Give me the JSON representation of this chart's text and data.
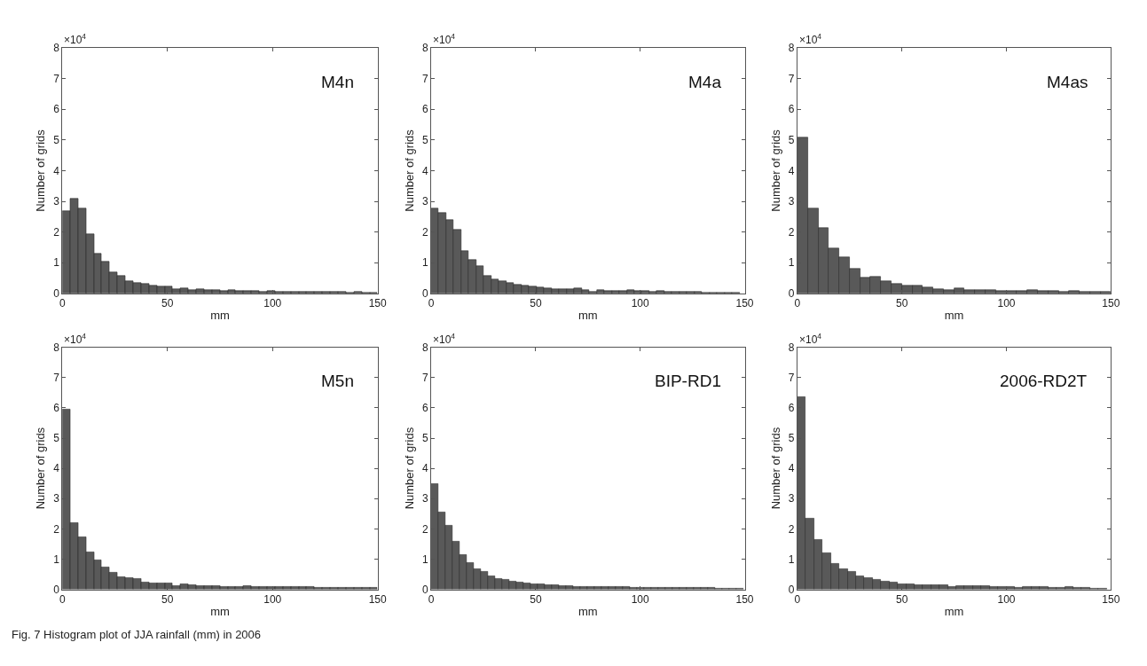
{
  "chart_data": [
    {
      "type": "histogram",
      "title": "M4n",
      "xlabel": "mm",
      "ylabel": "Number of grids",
      "color": "#595959",
      "xlim": [
        0,
        150
      ],
      "xticks": [
        0,
        50,
        100,
        150
      ],
      "ylim": [
        0,
        8
      ],
      "yticks": [
        0,
        1,
        2,
        3,
        4,
        5,
        6,
        7,
        8
      ],
      "grid": false,
      "legend": false,
      "bins": [
        0,
        3.75,
        7.5,
        11.25,
        15,
        18.75,
        22.5,
        26.25,
        30,
        33.75,
        37.5,
        41.25,
        45,
        48.75,
        52.5,
        56.25,
        60,
        63.75,
        67.5,
        71.25,
        75,
        78.75,
        82.5,
        86.25,
        90,
        93.75,
        97.5,
        101.25,
        105,
        108.75,
        112.5,
        116.25,
        120,
        123.75,
        127.5,
        131.25,
        135,
        138.75,
        142.5,
        146.25,
        150
      ],
      "values": [
        2.69,
        3.1,
        2.77,
        1.94,
        1.3,
        1.02,
        0.69,
        0.58,
        0.4,
        0.33,
        0.3,
        0.26,
        0.21,
        0.22,
        0.14,
        0.17,
        0.12,
        0.14,
        0.12,
        0.1,
        0.08,
        0.12,
        0.08,
        0.08,
        0.08,
        0.06,
        0.07,
        0.06,
        0.05,
        0.05,
        0.04,
        0.05,
        0.05,
        0.05,
        0.04,
        0.04,
        0.03,
        0.04,
        0.03,
        0.02
      ],
      "annotations": [
        "×10$^{4}$",
        "Fig. 7 Histogram plot of JJA rainfall (mm) in 2006"
      ]
    },
    {
      "type": "histogram",
      "title": "M4a",
      "xlabel": "mm",
      "ylabel": "Number of grids",
      "color": "#595959",
      "xlim": [
        0,
        150
      ],
      "xticks": [
        0,
        50,
        100,
        150
      ],
      "ylim": [
        0,
        8
      ],
      "yticks": [
        0,
        1,
        2,
        3,
        4,
        5,
        6,
        7,
        8
      ],
      "grid": false,
      "legend": false,
      "bins": [
        0,
        3.6,
        7.2,
        10.8,
        14.4,
        18,
        21.6,
        25.2,
        28.8,
        32.4,
        36,
        39.6,
        43.2,
        46.8,
        50.4,
        54,
        57.6,
        61.2,
        64.8,
        68.4,
        72,
        75.6,
        79.2,
        82.8,
        86.4,
        90,
        93.6,
        97.2,
        100.8,
        104.4,
        108,
        111.6,
        115.2,
        118.8,
        122.4,
        126,
        129.6,
        133.2,
        136.8,
        140.4,
        144,
        147.6
      ],
      "values": [
        2.76,
        2.62,
        2.39,
        2.07,
        1.39,
        1.08,
        0.88,
        0.57,
        0.45,
        0.39,
        0.34,
        0.28,
        0.25,
        0.23,
        0.19,
        0.16,
        0.15,
        0.14,
        0.15,
        0.17,
        0.11,
        0.06,
        0.11,
        0.08,
        0.08,
        0.07,
        0.1,
        0.07,
        0.07,
        0.05,
        0.08,
        0.05,
        0.05,
        0.04,
        0.04,
        0.04,
        0.03,
        0.03,
        0.03,
        0.03,
        0.02
      ],
      "annotations": [
        "×10$^{4}$"
      ]
    },
    {
      "type": "histogram",
      "title": "M4as",
      "xlabel": "mm",
      "ylabel": "Number of grids",
      "color": "#595959",
      "xlim": [
        0,
        150
      ],
      "xticks": [
        0,
        50,
        100,
        150
      ],
      "ylim": [
        0,
        8
      ],
      "yticks": [
        0,
        1,
        2,
        3,
        4,
        5,
        6,
        7,
        8
      ],
      "grid": false,
      "legend": false,
      "bins": [
        0,
        5,
        10,
        15,
        20,
        25,
        30,
        35,
        40,
        45,
        50,
        55,
        60,
        65,
        70,
        75,
        80,
        85,
        90,
        95,
        100,
        105,
        110,
        115,
        120,
        125,
        130,
        135,
        140,
        145,
        150
      ],
      "values": [
        5.07,
        2.78,
        2.14,
        1.46,
        1.18,
        0.79,
        0.52,
        0.55,
        0.41,
        0.32,
        0.25,
        0.26,
        0.2,
        0.15,
        0.11,
        0.17,
        0.1,
        0.1,
        0.11,
        0.09,
        0.09,
        0.08,
        0.11,
        0.08,
        0.07,
        0.05,
        0.07,
        0.05,
        0.04,
        0.05
      ],
      "annotations": [
        "×10$^{4}$"
      ]
    },
    {
      "type": "histogram",
      "title": "M5n",
      "xlabel": "mm",
      "ylabel": "Number of grids",
      "color": "#595959",
      "xlim": [
        0,
        150
      ],
      "xticks": [
        0,
        50,
        100,
        150
      ],
      "ylim": [
        0,
        8
      ],
      "yticks": [
        0,
        1,
        2,
        3,
        4,
        5,
        6,
        7,
        8
      ],
      "grid": false,
      "legend": false,
      "bins": [
        0,
        3.75,
        7.5,
        11.25,
        15,
        18.75,
        22.5,
        26.25,
        30,
        33.75,
        37.5,
        41.25,
        45,
        48.75,
        52.5,
        56.25,
        60,
        63.75,
        67.5,
        71.25,
        75,
        78.75,
        82.5,
        86.25,
        90,
        93.75,
        97.5,
        101.25,
        105,
        108.75,
        112.5,
        116.25,
        120,
        123.75,
        127.5,
        131.25,
        135,
        138.75,
        142.5,
        146.25,
        150
      ],
      "values": [
        5.94,
        2.19,
        1.73,
        1.22,
        0.96,
        0.72,
        0.56,
        0.41,
        0.37,
        0.34,
        0.23,
        0.21,
        0.19,
        0.19,
        0.1,
        0.16,
        0.13,
        0.11,
        0.1,
        0.11,
        0.09,
        0.09,
        0.08,
        0.1,
        0.08,
        0.08,
        0.08,
        0.07,
        0.08,
        0.07,
        0.08,
        0.07,
        0.06,
        0.05,
        0.05,
        0.05,
        0.04,
        0.04,
        0.05,
        0.05
      ],
      "annotations": [
        "×10$^{4}$"
      ]
    },
    {
      "type": "histogram",
      "title": "BIP-RD1",
      "xlabel": "mm",
      "ylabel": "Number of grids",
      "color": "#595959",
      "xlim": [
        0,
        150
      ],
      "xticks": [
        0,
        50,
        100,
        150
      ],
      "ylim": [
        0,
        8
      ],
      "yticks": [
        0,
        1,
        2,
        3,
        4,
        5,
        6,
        7,
        8
      ],
      "grid": false,
      "legend": false,
      "bins": [
        0,
        3.4,
        6.8,
        10.2,
        13.6,
        17,
        20.4,
        23.8,
        27.2,
        30.6,
        34,
        37.4,
        40.8,
        44.2,
        47.6,
        51,
        54.4,
        57.8,
        61.2,
        64.6,
        68,
        71.4,
        74.8,
        78.2,
        81.6,
        85,
        88.4,
        91.8,
        95.2,
        98.6,
        102,
        105.4,
        108.8,
        112.2,
        115.6,
        119,
        122.4,
        125.8,
        129.2,
        132.6,
        136,
        139.4,
        142.8,
        146.2,
        149.6
      ],
      "values": [
        3.47,
        2.55,
        2.12,
        1.59,
        1.15,
        0.87,
        0.68,
        0.59,
        0.43,
        0.36,
        0.31,
        0.26,
        0.24,
        0.19,
        0.18,
        0.17,
        0.15,
        0.13,
        0.11,
        0.1,
        0.09,
        0.09,
        0.08,
        0.08,
        0.08,
        0.07,
        0.07,
        0.07,
        0.06,
        0.06,
        0.06,
        0.05,
        0.05,
        0.05,
        0.05,
        0.04,
        0.04,
        0.04,
        0.04,
        0.04,
        0.03,
        0.03,
        0.03,
        0.03
      ],
      "annotations": [
        "×10$^{4}$"
      ]
    },
    {
      "type": "histogram",
      "title": "2006-RD2T",
      "xlabel": "mm",
      "ylabel": "Number of grids",
      "color": "#595959",
      "xlim": [
        0,
        150
      ],
      "xticks": [
        0,
        50,
        100,
        150
      ],
      "ylim": [
        0,
        8
      ],
      "yticks": [
        0,
        1,
        2,
        3,
        4,
        5,
        6,
        7,
        8
      ],
      "grid": false,
      "legend": false,
      "bins": [
        0,
        4,
        8,
        12,
        16,
        20,
        24,
        28,
        32,
        36,
        40,
        44,
        48,
        52,
        56,
        60,
        64,
        68,
        72,
        76,
        80,
        84,
        88,
        92,
        96,
        100,
        104,
        108,
        112,
        116,
        120,
        124,
        128,
        132,
        136,
        140,
        144,
        148
      ],
      "values": [
        6.37,
        2.34,
        1.63,
        1.21,
        0.85,
        0.66,
        0.58,
        0.42,
        0.38,
        0.31,
        0.26,
        0.23,
        0.18,
        0.16,
        0.15,
        0.14,
        0.14,
        0.13,
        0.09,
        0.11,
        0.1,
        0.12,
        0.1,
        0.07,
        0.08,
        0.08,
        0.06,
        0.07,
        0.07,
        0.08,
        0.06,
        0.06,
        0.08,
        0.06,
        0.04,
        0.03,
        0.03
      ],
      "annotations": [
        "×10$^{4}$"
      ]
    }
  ]
}
